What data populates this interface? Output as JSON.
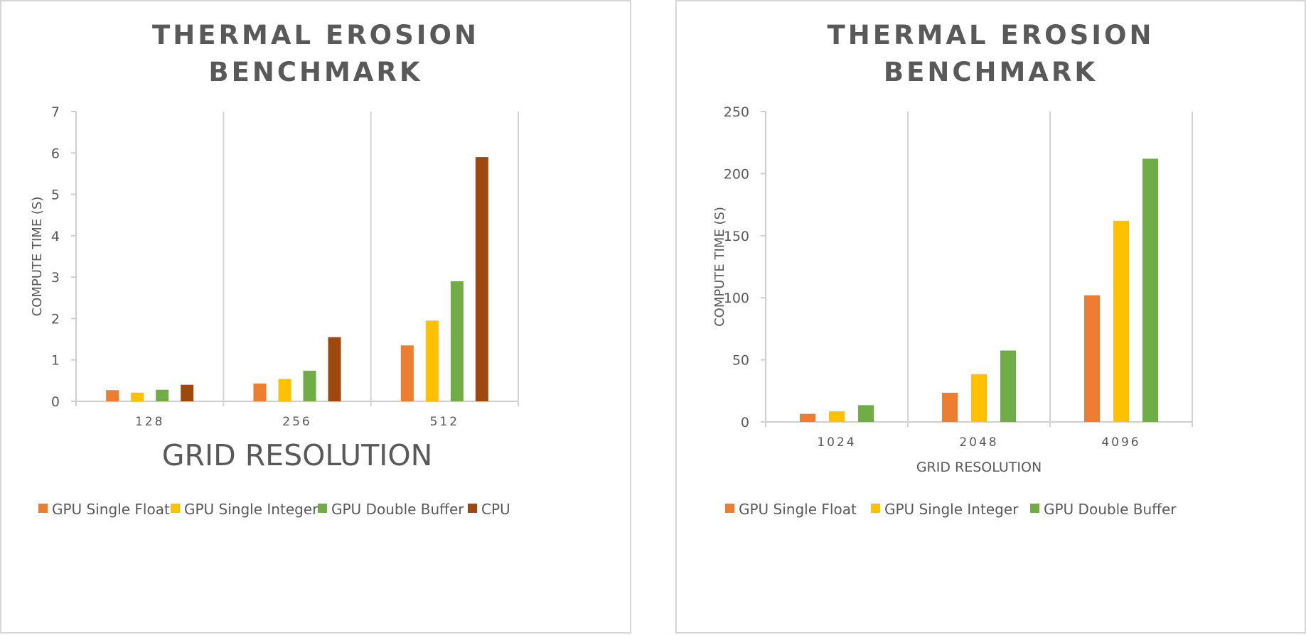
{
  "chart_data": [
    {
      "type": "bar",
      "title_lines": [
        "THERMAL EROSION",
        "BENCHMARK"
      ],
      "xlabel": "GRID RESOLUTION",
      "ylabel": "COMPUTE TIME (S)",
      "ylim": [
        0,
        7
      ],
      "yticks": [
        "0",
        "1",
        "2",
        "3",
        "4",
        "5",
        "6",
        "7"
      ],
      "categories": [
        "128",
        "256",
        "512"
      ],
      "series": [
        {
          "name": "GPU Single Float",
          "color": "#ED7D31",
          "values": [
            0.27,
            0.43,
            1.35
          ]
        },
        {
          "name": "GPU Single Integer",
          "color": "#FFC000",
          "values": [
            0.21,
            0.54,
            1.95
          ]
        },
        {
          "name": "GPU Double Buffer",
          "color": "#70AD47",
          "values": [
            0.28,
            0.74,
            2.9
          ]
        },
        {
          "name": "CPU",
          "color": "#9E480E",
          "values": [
            0.4,
            1.55,
            5.9
          ]
        }
      ],
      "grid": false,
      "legend_position": "bottom"
    },
    {
      "type": "bar",
      "title_lines": [
        "THERMAL EROSION",
        "BENCHMARK"
      ],
      "xlabel": "GRID RESOLUTION",
      "ylabel": "COMPUTE TIME (S)",
      "ylim": [
        0,
        250
      ],
      "yticks": [
        "0",
        "50",
        "100",
        "150",
        "200",
        "250"
      ],
      "categories": [
        "1024",
        "2048",
        "4096"
      ],
      "series": [
        {
          "name": "GPU Single Float",
          "color": "#ED7D31",
          "values": [
            6.5,
            23.5,
            102
          ]
        },
        {
          "name": "GPU Single Integer",
          "color": "#FFC000",
          "values": [
            8.5,
            38.5,
            162
          ]
        },
        {
          "name": "GPU Double Buffer",
          "color": "#70AD47",
          "values": [
            13.5,
            57.5,
            212
          ]
        }
      ],
      "grid": false,
      "legend_position": "bottom"
    }
  ]
}
